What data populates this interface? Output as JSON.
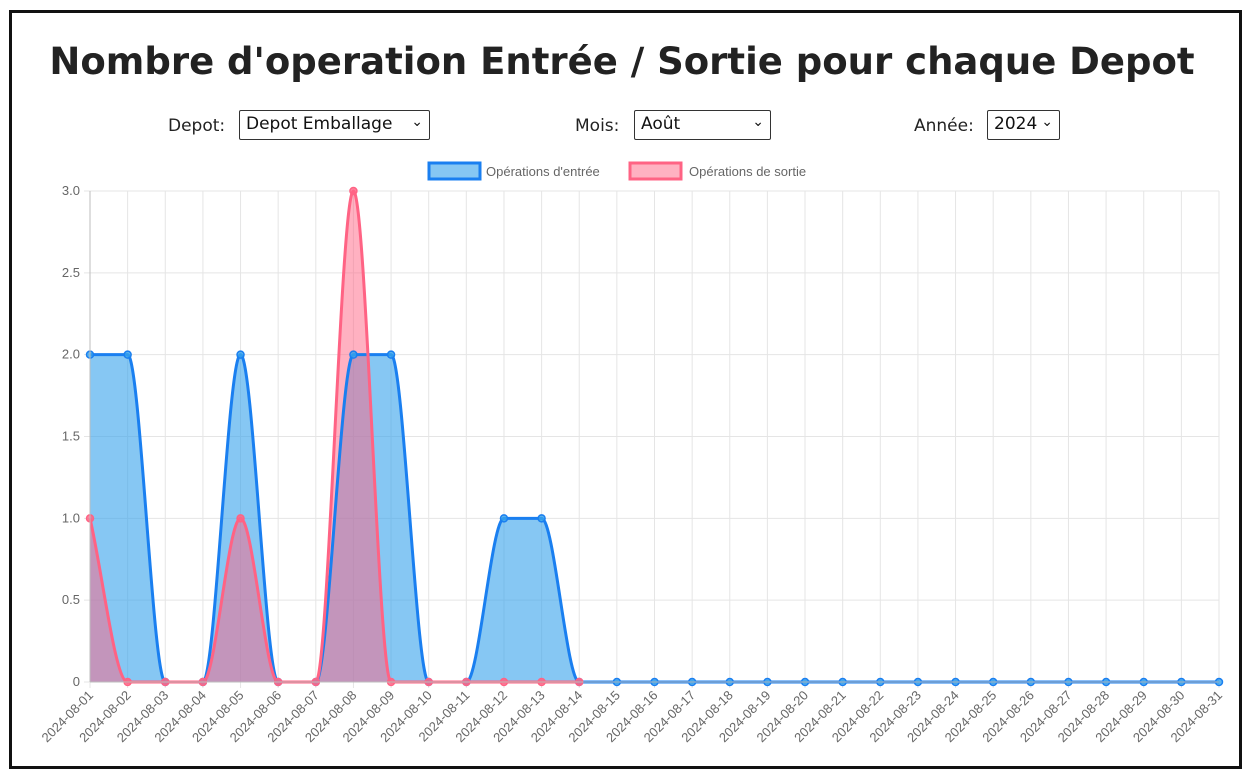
{
  "page": {
    "title": "Nombre d'operation Entrée / Sortie pour chaque Depot"
  },
  "filters": {
    "depot": {
      "label": "Depot:",
      "value": "Depot Emballage"
    },
    "mois": {
      "label": "Mois:",
      "value": "Août"
    },
    "annee": {
      "label": "Année:",
      "value": "2024"
    }
  },
  "icons": {
    "select_chevron": "chevron-down-icon"
  },
  "chart_data": {
    "type": "area",
    "legend_position": "top-center",
    "grid": true,
    "ylim": [
      0,
      3
    ],
    "y_ticks": [
      "0",
      "0.5",
      "1.0",
      "1.5",
      "2.0",
      "2.5",
      "3.0"
    ],
    "categories": [
      "2024-08-01",
      "2024-08-02",
      "2024-08-03",
      "2024-08-04",
      "2024-08-05",
      "2024-08-06",
      "2024-08-07",
      "2024-08-08",
      "2024-08-09",
      "2024-08-10",
      "2024-08-11",
      "2024-08-12",
      "2024-08-13",
      "2024-08-14",
      "2024-08-15",
      "2024-08-16",
      "2024-08-17",
      "2024-08-18",
      "2024-08-19",
      "2024-08-20",
      "2024-08-21",
      "2024-08-22",
      "2024-08-23",
      "2024-08-24",
      "2024-08-25",
      "2024-08-26",
      "2024-08-27",
      "2024-08-28",
      "2024-08-29",
      "2024-08-30",
      "2024-08-31"
    ],
    "series": [
      {
        "name": "Opérations d'entrée",
        "color": "#1a7ff0",
        "fill": "rgba(54,162,235,0.6)",
        "values": [
          2,
          2,
          0,
          0,
          2,
          0,
          0,
          2,
          2,
          0,
          0,
          1,
          1,
          0,
          0,
          0,
          0,
          0,
          0,
          0,
          0,
          0,
          0,
          0,
          0,
          0,
          0,
          0,
          0,
          0,
          0
        ]
      },
      {
        "name": "Opérations de sortie",
        "color": "#ff6384",
        "fill": "rgba(255,99,132,0.5)",
        "values": [
          1,
          0,
          0,
          0,
          1,
          0,
          0,
          3,
          0,
          0,
          0,
          0,
          0,
          0,
          null,
          null,
          null,
          null,
          null,
          null,
          null,
          null,
          null,
          null,
          null,
          null,
          null,
          null,
          null,
          null,
          null
        ]
      }
    ]
  }
}
